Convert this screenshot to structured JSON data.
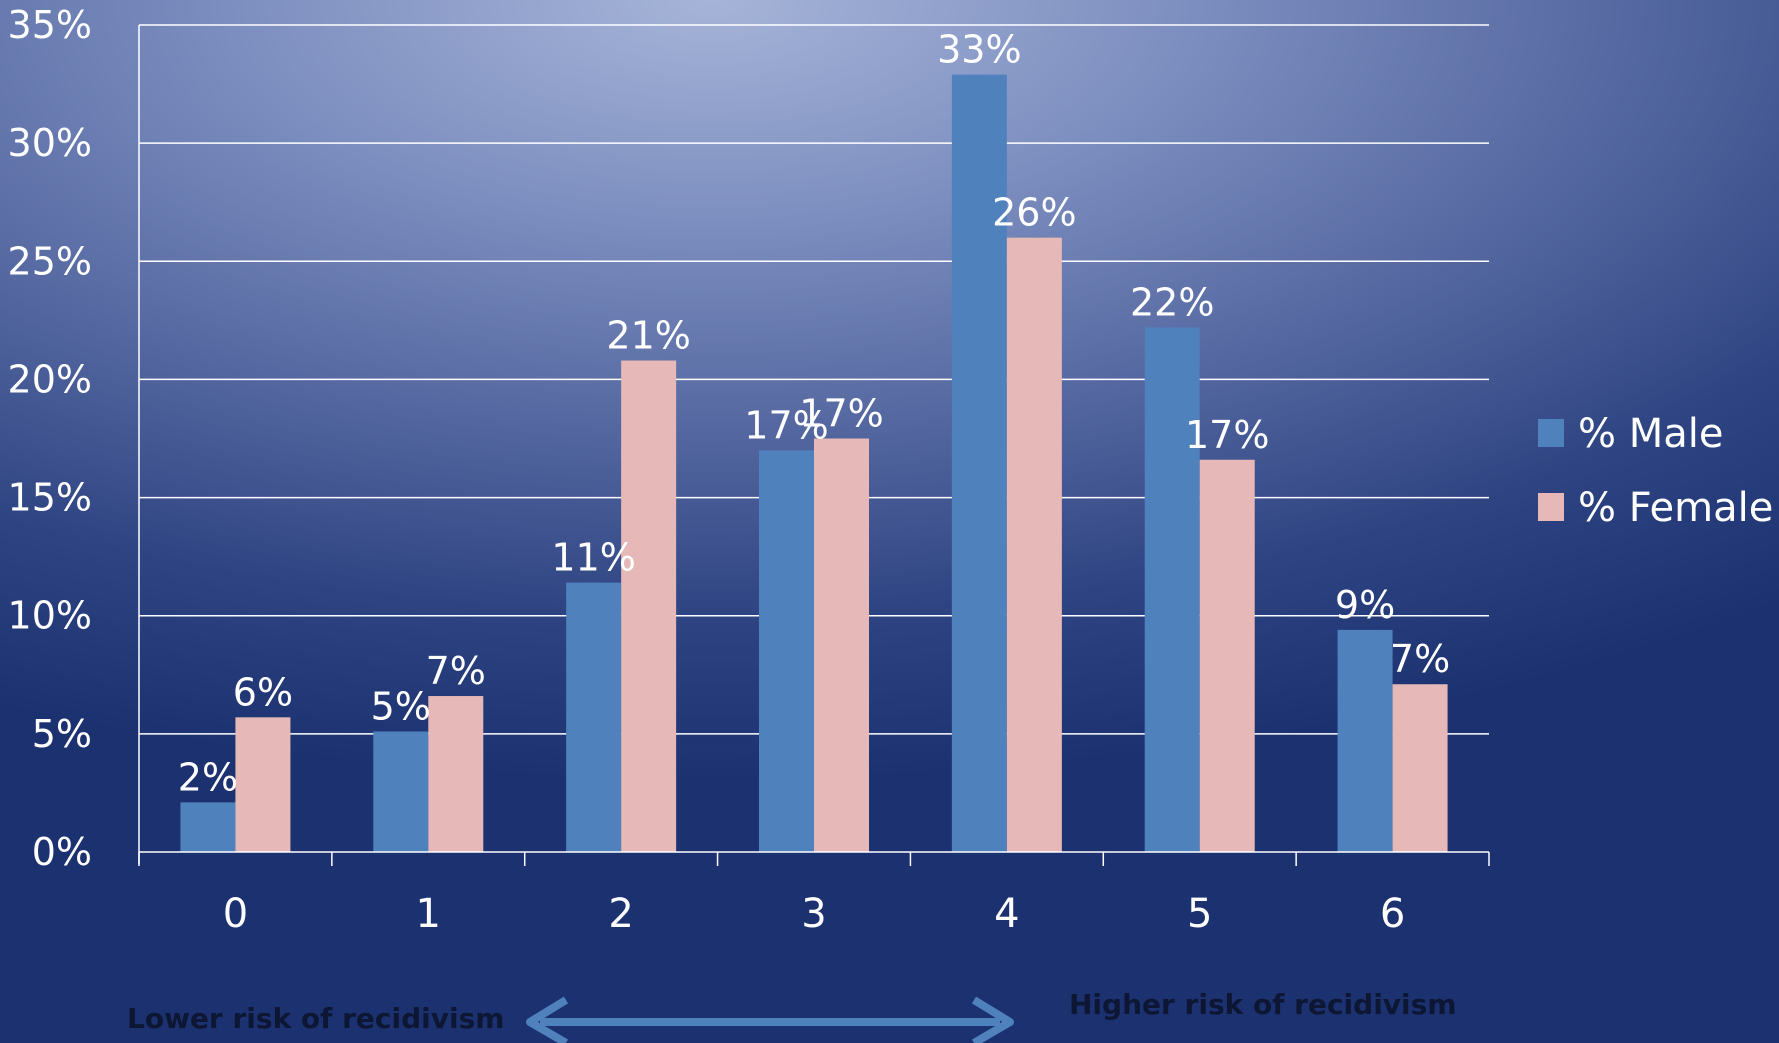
{
  "chart_data": {
    "type": "bar",
    "categories": [
      "0",
      "1",
      "2",
      "3",
      "4",
      "5",
      "6"
    ],
    "series": [
      {
        "name": "% Male",
        "color": "#4f81bd",
        "values": [
          2.1,
          5.1,
          11.4,
          17.0,
          32.9,
          22.2,
          9.4
        ],
        "labels": [
          "2%",
          "5%",
          "11%",
          "17%",
          "33%",
          "22%",
          "9%"
        ]
      },
      {
        "name": "% Female",
        "color": "#e6b8b7",
        "values": [
          5.7,
          6.6,
          20.8,
          17.5,
          26.0,
          16.6,
          7.1
        ],
        "labels": [
          "6%",
          "7%",
          "21%",
          "17%",
          "26%",
          "17%",
          "7%"
        ]
      }
    ],
    "ylim": [
      0,
      35
    ],
    "yticks": [
      0,
      5,
      10,
      15,
      20,
      25,
      30,
      35
    ],
    "ytick_labels": [
      "0%",
      "5%",
      "10%",
      "15%",
      "20%",
      "25%",
      "30%",
      "35%"
    ],
    "title": "",
    "xlabel": "",
    "ylabel": "",
    "grid": true,
    "legend_position": "right",
    "annotations": {
      "lower": "Lower risk of recidivism",
      "higher": "Higher risk of recidivism"
    },
    "arrow_color": "#4f81bd"
  }
}
